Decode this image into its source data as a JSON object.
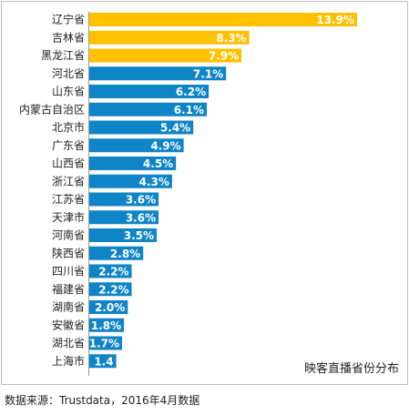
{
  "chart_data": {
    "type": "bar",
    "orientation": "horizontal",
    "title": "",
    "legend_label": "映客直播省份分布",
    "legend_placement": "bottom-right",
    "value_unit": "%",
    "categories": [
      "辽宁省",
      "吉林省",
      "黑龙江省",
      "河北省",
      "山东省",
      "内蒙古自治区",
      "北京市",
      "广东省",
      "山西省",
      "浙江省",
      "江苏省",
      "天津市",
      "河南省",
      "陕西省",
      "四川省",
      "福建省",
      "湖南省",
      "安徽省",
      "湖北省",
      "上海市"
    ],
    "values": [
      13.9,
      8.3,
      7.9,
      7.1,
      6.2,
      6.1,
      5.4,
      4.9,
      4.5,
      4.3,
      3.6,
      3.6,
      3.5,
      2.8,
      2.2,
      2.2,
      2.0,
      1.8,
      1.7,
      1.4
    ],
    "value_labels": [
      "13.9%",
      "8.3%",
      "7.9%",
      "7.1%",
      "6.2%",
      "6.1%",
      "5.4%",
      "4.9%",
      "4.5%",
      "4.3%",
      "3.6%",
      "3.6%",
      "3.5%",
      "2.8%",
      "2.2%",
      "2.2%",
      "2.0%",
      "1.8%",
      "1.7%",
      "1.4"
    ],
    "highlight_count": 3,
    "colors": {
      "highlight": "#FFC000",
      "normal": "#0F84C6",
      "frame": "#BFBFBF"
    },
    "xlim": [
      0,
      13.9
    ],
    "grid": false
  },
  "source_note": "数据来源：Trustdata，2016年4月数据"
}
